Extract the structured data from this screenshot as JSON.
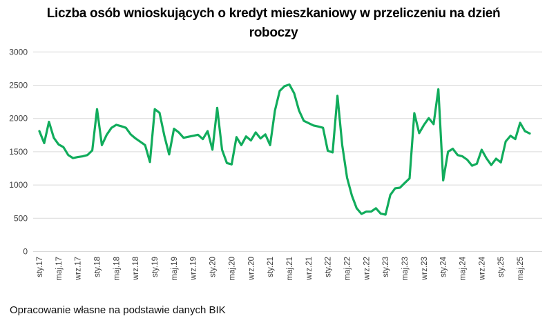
{
  "page": {
    "title_line1": "Liczba osób wnioskujących o kredyt mieszkaniowy w przeliczeniu na dzień",
    "title_line2": "roboczy",
    "footer": "Opracowanie własne na podstawie danych BIK"
  },
  "chart_data": {
    "type": "line",
    "title": "Liczba osób wnioskujących o kredyt mieszkaniowy w przeliczeniu na dzień roboczy",
    "source_note": "Opracowanie własne na podstawie danych BIK",
    "legend": "none",
    "grid": "horizontal",
    "line_color": "#11AC5C",
    "gridline_color": "#D9D9D9",
    "axis_label_color": "#3F3F3F",
    "ylim": [
      0,
      3000
    ],
    "y_tick_step": 500,
    "y_tick_labels": [
      "0",
      "500",
      "1000",
      "1500",
      "2000",
      "2500",
      "3000"
    ],
    "x_tick_every": 4,
    "x": [
      "sty.17",
      "lut.17",
      "mar.17",
      "kwi.17",
      "maj.17",
      "cze.17",
      "lip.17",
      "sie.17",
      "wrz.17",
      "paź.17",
      "lis.17",
      "gru.17",
      "sty.18",
      "lut.18",
      "mar.18",
      "kwi.18",
      "maj.18",
      "cze.18",
      "lip.18",
      "sie.18",
      "wrz.18",
      "paź.18",
      "lis.18",
      "gru.18",
      "sty.19",
      "lut.19",
      "mar.19",
      "kwi.19",
      "maj.19",
      "cze.19",
      "lip.19",
      "sie.19",
      "wrz.19",
      "paź.19",
      "lis.19",
      "gru.19",
      "sty.20",
      "lut.20",
      "mar.20",
      "kwi.20",
      "maj.20",
      "cze.20",
      "lip.20",
      "sie.20",
      "wrz.20",
      "paź.20",
      "lis.20",
      "gru.20",
      "sty.21",
      "lut.21",
      "mar.21",
      "kwi.21",
      "maj.21",
      "cze.21",
      "lip.21",
      "sie.21",
      "wrz.21",
      "paź.21",
      "lis.21",
      "gru.21",
      "sty.22",
      "lut.22",
      "mar.22",
      "kwi.22",
      "maj.22",
      "cze.22",
      "lip.22",
      "sie.22",
      "wrz.22",
      "paź.22",
      "lis.22",
      "gru.22",
      "sty.23",
      "lut.23",
      "mar.23",
      "kwi.23",
      "maj.23",
      "cze.23",
      "lip.23",
      "sie.23",
      "wrz.23",
      "paź.23",
      "lis.23",
      "gru.23",
      "sty.24",
      "lut.24",
      "mar.24",
      "kwi.24",
      "maj.24",
      "cze.24",
      "lip.24",
      "sie.24",
      "wrz.24",
      "paź.24",
      "lis.24",
      "gru.24",
      "sty.25",
      "lut.25",
      "mar.25",
      "kwi.25",
      "maj.25",
      "cze.25",
      "lip.25"
    ],
    "values": [
      1810,
      1630,
      1950,
      1710,
      1610,
      1570,
      1450,
      1405,
      1420,
      1430,
      1450,
      1520,
      2140,
      1600,
      1755,
      1860,
      1905,
      1885,
      1860,
      1760,
      1700,
      1650,
      1600,
      1345,
      2140,
      2085,
      1740,
      1460,
      1845,
      1790,
      1710,
      1725,
      1740,
      1755,
      1690,
      1810,
      1530,
      2160,
      1530,
      1330,
      1310,
      1720,
      1600,
      1730,
      1670,
      1790,
      1700,
      1760,
      1600,
      2120,
      2415,
      2485,
      2510,
      2380,
      2120,
      1965,
      1930,
      1895,
      1880,
      1860,
      1515,
      1490,
      2340,
      1600,
      1110,
      840,
      650,
      565,
      600,
      600,
      650,
      570,
      555,
      850,
      950,
      960,
      1030,
      1100,
      2080,
      1780,
      1905,
      2005,
      1915,
      2440,
      1070,
      1500,
      1545,
      1450,
      1430,
      1380,
      1290,
      1320,
      1530,
      1400,
      1300,
      1395,
      1340,
      1655,
      1740,
      1690,
      1935,
      1810,
      1775
    ]
  }
}
